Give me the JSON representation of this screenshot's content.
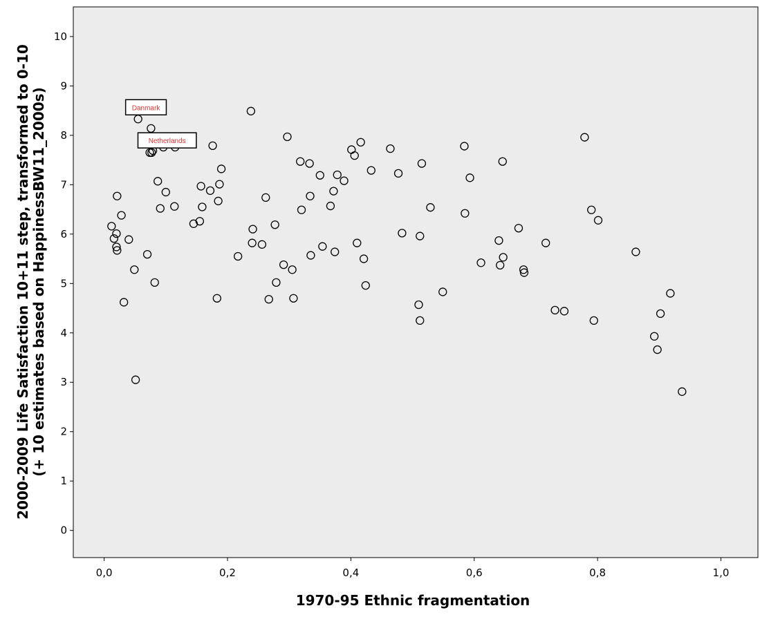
{
  "chart_data": {
    "type": "scatter",
    "title": "",
    "xlabel": "1970-95 Ethnic fragmentation",
    "ylabel_lines": [
      "2000-2009 Life Satisfaction 10+11 step, transformed to 0-10",
      "(+ 10 estimates based on HappinessBW11_2000s)"
    ],
    "xlim": [
      -0.05,
      1.06
    ],
    "ylim": [
      -0.55,
      10.6
    ],
    "x_ticks": [
      {
        "value": 0.0,
        "label": "0,0"
      },
      {
        "value": 0.2,
        "label": "0,2"
      },
      {
        "value": 0.4,
        "label": "0,4"
      },
      {
        "value": 0.6,
        "label": "0,6"
      },
      {
        "value": 0.8,
        "label": "0,8"
      },
      {
        "value": 1.0,
        "label": "1,0"
      }
    ],
    "y_ticks": [
      {
        "value": 0,
        "label": "0"
      },
      {
        "value": 1,
        "label": "1"
      },
      {
        "value": 2,
        "label": "2"
      },
      {
        "value": 3,
        "label": "3"
      },
      {
        "value": 4,
        "label": "4"
      },
      {
        "value": 5,
        "label": "5"
      },
      {
        "value": 6,
        "label": "6"
      },
      {
        "value": 7,
        "label": "7"
      },
      {
        "value": 8,
        "label": "8"
      },
      {
        "value": 9,
        "label": "9"
      },
      {
        "value": 10,
        "label": "10"
      }
    ],
    "grid": false,
    "plot_background": "#ececec",
    "marker_color": "#000000",
    "annotations": [
      {
        "text": "Danmark",
        "x": 0.055,
        "y": 8.33,
        "color": "#e03030"
      },
      {
        "text": "Netherlands",
        "x": 0.075,
        "y": 7.66,
        "color": "#e03030"
      }
    ],
    "points": [
      {
        "x": 0.012,
        "y": 6.16
      },
      {
        "x": 0.016,
        "y": 5.91
      },
      {
        "x": 0.02,
        "y": 6.01
      },
      {
        "x": 0.02,
        "y": 5.74
      },
      {
        "x": 0.021,
        "y": 5.67
      },
      {
        "x": 0.021,
        "y": 6.77
      },
      {
        "x": 0.028,
        "y": 6.38
      },
      {
        "x": 0.032,
        "y": 4.62
      },
      {
        "x": 0.04,
        "y": 5.89
      },
      {
        "x": 0.049,
        "y": 5.28
      },
      {
        "x": 0.051,
        "y": 3.05
      },
      {
        "x": 0.055,
        "y": 8.33
      },
      {
        "x": 0.07,
        "y": 5.59
      },
      {
        "x": 0.074,
        "y": 7.65
      },
      {
        "x": 0.076,
        "y": 8.14
      },
      {
        "x": 0.077,
        "y": 7.65
      },
      {
        "x": 0.079,
        "y": 7.69
      },
      {
        "x": 0.082,
        "y": 5.02
      },
      {
        "x": 0.087,
        "y": 7.07
      },
      {
        "x": 0.091,
        "y": 6.52
      },
      {
        "x": 0.096,
        "y": 7.76
      },
      {
        "x": 0.1,
        "y": 6.85
      },
      {
        "x": 0.114,
        "y": 6.56
      },
      {
        "x": 0.115,
        "y": 7.76
      },
      {
        "x": 0.145,
        "y": 6.21
      },
      {
        "x": 0.155,
        "y": 6.26
      },
      {
        "x": 0.157,
        "y": 6.97
      },
      {
        "x": 0.159,
        "y": 6.55
      },
      {
        "x": 0.172,
        "y": 6.88
      },
      {
        "x": 0.176,
        "y": 7.79
      },
      {
        "x": 0.183,
        "y": 4.7
      },
      {
        "x": 0.185,
        "y": 6.67
      },
      {
        "x": 0.187,
        "y": 7.01
      },
      {
        "x": 0.19,
        "y": 7.32
      },
      {
        "x": 0.217,
        "y": 5.55
      },
      {
        "x": 0.238,
        "y": 8.49
      },
      {
        "x": 0.24,
        "y": 5.82
      },
      {
        "x": 0.241,
        "y": 6.1
      },
      {
        "x": 0.256,
        "y": 5.79
      },
      {
        "x": 0.262,
        "y": 6.74
      },
      {
        "x": 0.267,
        "y": 4.68
      },
      {
        "x": 0.277,
        "y": 6.19
      },
      {
        "x": 0.279,
        "y": 5.02
      },
      {
        "x": 0.291,
        "y": 5.38
      },
      {
        "x": 0.297,
        "y": 7.97
      },
      {
        "x": 0.305,
        "y": 5.28
      },
      {
        "x": 0.307,
        "y": 4.7
      },
      {
        "x": 0.318,
        "y": 7.47
      },
      {
        "x": 0.32,
        "y": 6.49
      },
      {
        "x": 0.333,
        "y": 7.43
      },
      {
        "x": 0.334,
        "y": 6.77
      },
      {
        "x": 0.335,
        "y": 5.57
      },
      {
        "x": 0.35,
        "y": 7.19
      },
      {
        "x": 0.354,
        "y": 5.75
      },
      {
        "x": 0.367,
        "y": 6.57
      },
      {
        "x": 0.372,
        "y": 6.87
      },
      {
        "x": 0.374,
        "y": 5.64
      },
      {
        "x": 0.378,
        "y": 7.2
      },
      {
        "x": 0.389,
        "y": 7.08
      },
      {
        "x": 0.401,
        "y": 7.71
      },
      {
        "x": 0.406,
        "y": 7.59
      },
      {
        "x": 0.41,
        "y": 5.82
      },
      {
        "x": 0.416,
        "y": 7.86
      },
      {
        "x": 0.421,
        "y": 5.5
      },
      {
        "x": 0.424,
        "y": 4.96
      },
      {
        "x": 0.433,
        "y": 7.29
      },
      {
        "x": 0.464,
        "y": 7.73
      },
      {
        "x": 0.477,
        "y": 7.23
      },
      {
        "x": 0.483,
        "y": 6.02
      },
      {
        "x": 0.51,
        "y": 4.57
      },
      {
        "x": 0.512,
        "y": 5.96
      },
      {
        "x": 0.512,
        "y": 4.25
      },
      {
        "x": 0.515,
        "y": 7.43
      },
      {
        "x": 0.529,
        "y": 6.54
      },
      {
        "x": 0.549,
        "y": 4.83
      },
      {
        "x": 0.584,
        "y": 7.78
      },
      {
        "x": 0.585,
        "y": 6.42
      },
      {
        "x": 0.593,
        "y": 7.14
      },
      {
        "x": 0.611,
        "y": 5.42
      },
      {
        "x": 0.64,
        "y": 5.87
      },
      {
        "x": 0.642,
        "y": 5.37
      },
      {
        "x": 0.646,
        "y": 7.47
      },
      {
        "x": 0.647,
        "y": 5.53
      },
      {
        "x": 0.672,
        "y": 6.12
      },
      {
        "x": 0.68,
        "y": 5.28
      },
      {
        "x": 0.681,
        "y": 5.22
      },
      {
        "x": 0.716,
        "y": 5.82
      },
      {
        "x": 0.731,
        "y": 4.46
      },
      {
        "x": 0.746,
        "y": 4.44
      },
      {
        "x": 0.779,
        "y": 7.96
      },
      {
        "x": 0.79,
        "y": 6.49
      },
      {
        "x": 0.794,
        "y": 4.25
      },
      {
        "x": 0.801,
        "y": 6.28
      },
      {
        "x": 0.862,
        "y": 5.64
      },
      {
        "x": 0.892,
        "y": 3.93
      },
      {
        "x": 0.897,
        "y": 3.66
      },
      {
        "x": 0.902,
        "y": 4.39
      },
      {
        "x": 0.918,
        "y": 4.8
      },
      {
        "x": 0.937,
        "y": 2.81
      }
    ]
  }
}
